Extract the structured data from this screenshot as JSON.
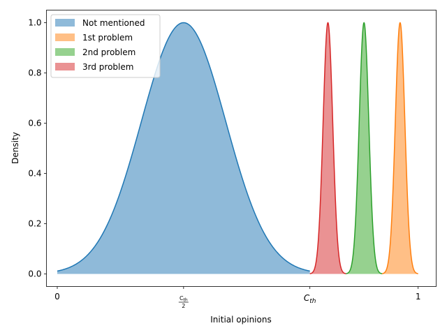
{
  "chart_data": {
    "type": "area",
    "title": "",
    "xlabel": "Initial opinions",
    "ylabel": "Density",
    "xlim": [
      -0.03,
      1.05
    ],
    "ylim": [
      -0.05,
      1.05
    ],
    "x_ticks": [
      {
        "value": 0,
        "label": "0"
      },
      {
        "value": 0.35,
        "label_num": "C",
        "label_num_sub": "th",
        "label_den": "2"
      },
      {
        "value": 0.7,
        "label": "C",
        "label_sub": "th"
      },
      {
        "value": 1.0,
        "label": "1"
      }
    ],
    "y_ticks": [
      {
        "value": 0.0,
        "label": "0.0"
      },
      {
        "value": 0.2,
        "label": "0.2"
      },
      {
        "value": 0.4,
        "label": "0.4"
      },
      {
        "value": 0.6,
        "label": "0.6"
      },
      {
        "value": 0.8,
        "label": "0.8"
      },
      {
        "value": 1.0,
        "label": "1.0"
      }
    ],
    "legend_position": "top-left",
    "series": [
      {
        "name": "Not mentioned",
        "fill": "#8fbad9",
        "line": "#1f77b4",
        "center": 0.35,
        "sigma": 0.117,
        "range": [
          0.0,
          0.7
        ]
      },
      {
        "name": "1st problem",
        "fill": "#ffbf86",
        "line": "#ff7f0e",
        "center": 0.95,
        "sigma": 0.0133,
        "range": [
          0.9,
          1.0
        ]
      },
      {
        "name": "2nd problem",
        "fill": "#96d18f",
        "line": "#2ca02c",
        "center": 0.85,
        "sigma": 0.0133,
        "range": [
          0.8,
          0.9
        ]
      },
      {
        "name": "3rd problem",
        "fill": "#ea9293",
        "line": "#d62728",
        "center": 0.75,
        "sigma": 0.0133,
        "range": [
          0.7,
          0.8
        ]
      }
    ]
  }
}
